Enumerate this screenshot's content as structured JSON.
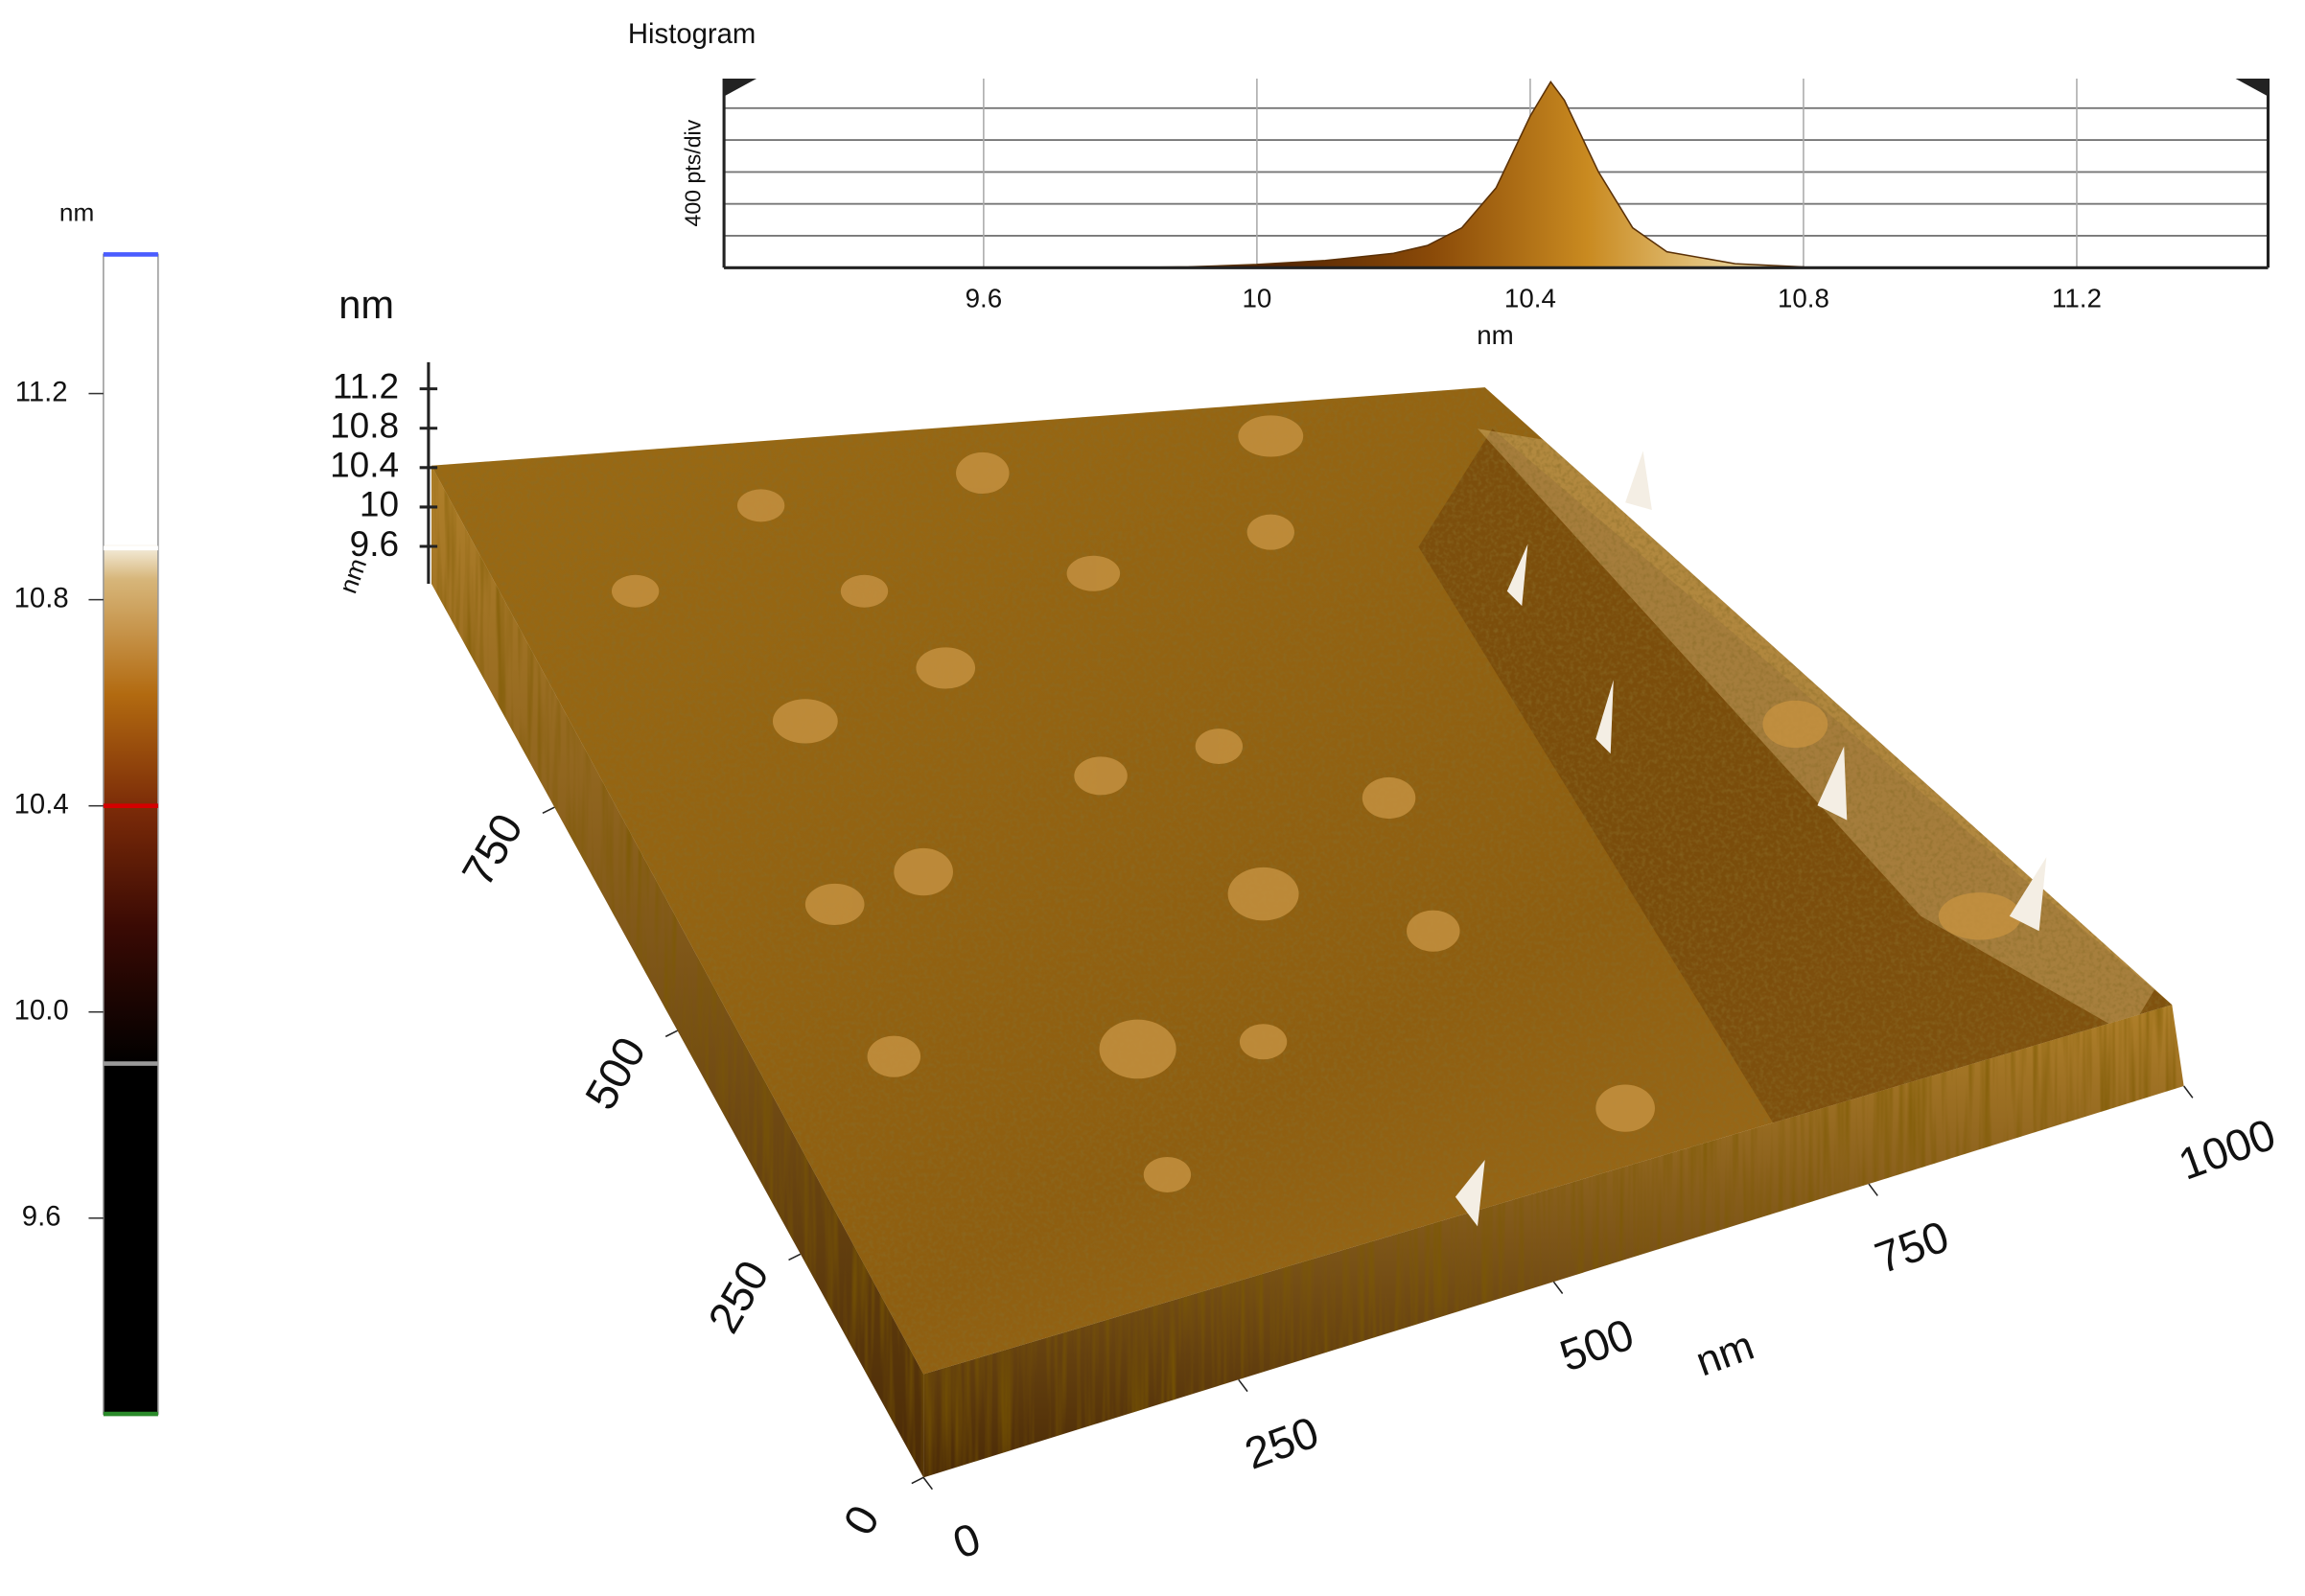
{
  "colorbar": {
    "unit": "nm",
    "ylim": [
      9.22,
      11.47
    ],
    "ticks": [
      11.2,
      10.8,
      10.4,
      {
        "value": 10,
        "label": "10.0"
      },
      9.6
    ],
    "markers": [
      {
        "value": 11.47,
        "color": "#4a5cff"
      },
      {
        "value": 10.9,
        "color": "#ffffff"
      },
      {
        "value": 10.4,
        "color": "#d40000"
      },
      {
        "value": 9.9,
        "color": "#9a9a9a"
      },
      {
        "value": 9.22,
        "color": "#2a8a2a"
      }
    ]
  },
  "histogram": {
    "type": "area",
    "title": "Histogram",
    "x_label": "nm",
    "y_label": "400 pts/div",
    "xlim": [
      9.22,
      11.48
    ],
    "xticks": [
      9.6,
      10,
      10.4,
      10.8,
      11.2
    ],
    "ylim": [
      0,
      2370
    ],
    "yticks": [
      0,
      400,
      800,
      1200,
      1600,
      2000
    ],
    "x": [
      9.8,
      9.9,
      10.0,
      10.1,
      10.2,
      10.25,
      10.3,
      10.35,
      10.4,
      10.43,
      10.45,
      10.5,
      10.55,
      10.6,
      10.7,
      10.8
    ],
    "values": [
      0,
      10,
      40,
      90,
      180,
      280,
      500,
      1000,
      1900,
      2330,
      2100,
      1200,
      500,
      200,
      50,
      10
    ]
  },
  "surface": {
    "z_label": "nm",
    "zlim": [
      9.22,
      11.47
    ],
    "zticks": [
      11.2,
      10.8,
      10.4,
      10,
      9.6
    ],
    "z_unit": "nm",
    "x_label": "nm",
    "xlim": [
      0,
      1000
    ],
    "xticks": [
      0,
      250,
      500,
      750,
      1000
    ],
    "ylim": [
      0,
      1000
    ],
    "yticks": [
      0,
      250,
      500,
      750
    ]
  }
}
